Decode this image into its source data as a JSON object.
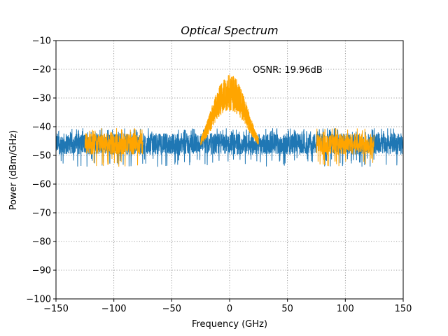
{
  "chart_data": {
    "type": "line",
    "title": "Optical Spectrum",
    "xlabel": "Frequency (GHz)",
    "ylabel": "Power (dBm/GHz)",
    "xlim": [
      -150,
      150
    ],
    "ylim": [
      -100,
      -10
    ],
    "xticks": [
      -150,
      -100,
      -50,
      0,
      50,
      100,
      150
    ],
    "xtick_labels": [
      "−150",
      "−100",
      "−50",
      "0",
      "50",
      "100",
      "150"
    ],
    "yticks": [
      -100,
      -90,
      -80,
      -70,
      -60,
      -50,
      -40,
      -30,
      -20,
      -10
    ],
    "ytick_labels": [
      "−100",
      "−90",
      "−80",
      "−70",
      "−60",
      "−50",
      "−40",
      "−30",
      "−20",
      "−10"
    ],
    "grid": true,
    "annotation": {
      "text": "OSNR: 19.96dB",
      "x": 20,
      "y": -20
    },
    "series": [
      {
        "color": "#1f77b4",
        "description_points": {
          "x": [
            -150,
            -125,
            -75,
            -25,
            -25,
            25,
            25,
            75,
            125,
            150
          ],
          "y_center": [
            -46,
            -46,
            -46,
            -45,
            -45,
            -45,
            -45,
            -46,
            -46,
            -46
          ],
          "y_spread": 5
        },
        "noise_floor": -46,
        "noise_spread": 5,
        "x_range": [
          -150,
          150
        ]
      },
      {
        "color": "#ffa500",
        "signal": {
          "x_range": [
            -25,
            25
          ],
          "peak": -27,
          "peak_upper": -23,
          "peak_lower": -33,
          "edge_level": -45,
          "bandwidth": 50
        },
        "noise_bands": [
          {
            "x_range": [
              -125,
              -75
            ],
            "level": -46,
            "spread": 5
          },
          {
            "x_range": [
              75,
              125
            ],
            "level": -46,
            "spread": 5
          }
        ]
      }
    ]
  }
}
